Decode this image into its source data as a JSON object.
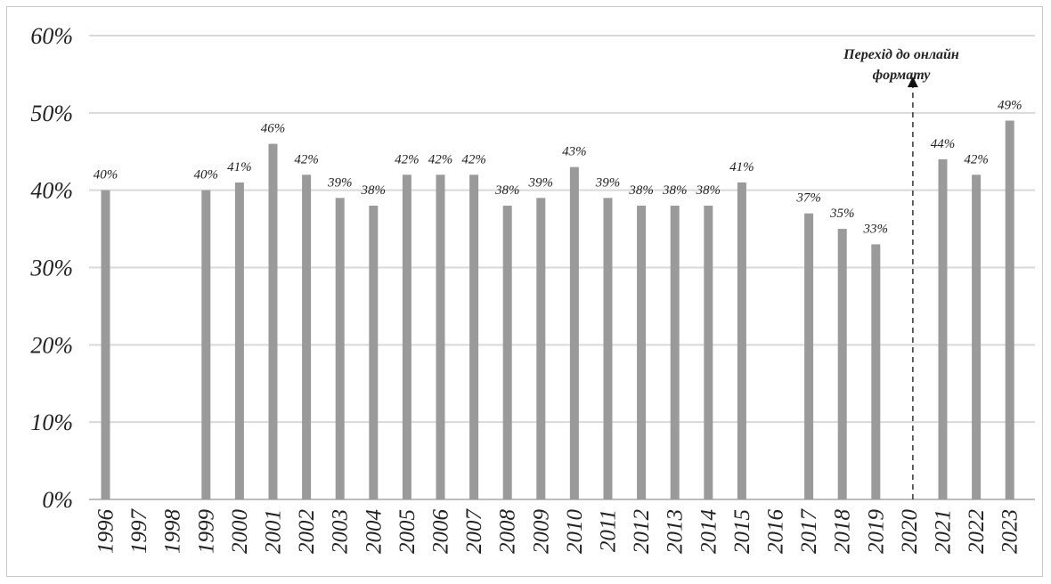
{
  "chart_data": {
    "type": "bar",
    "categories": [
      "1996",
      "1997",
      "1998",
      "1999",
      "2000",
      "2001",
      "2002",
      "2003",
      "2004",
      "2005",
      "2006",
      "2007",
      "2008",
      "2009",
      "2010",
      "2011",
      "2012",
      "2013",
      "2014",
      "2015",
      "2016",
      "2017",
      "2018",
      "2019",
      "2020",
      "2021",
      "2022",
      "2023"
    ],
    "values": [
      40,
      null,
      null,
      40,
      41,
      46,
      42,
      39,
      38,
      42,
      42,
      42,
      38,
      39,
      43,
      39,
      38,
      38,
      38,
      41,
      null,
      37,
      35,
      33,
      null,
      44,
      42,
      49
    ],
    "data_labels": [
      "40%",
      "",
      "",
      "40%",
      "41%",
      "46%",
      "42%",
      "39%",
      "38%",
      "42%",
      "42%",
      "42%",
      "38%",
      "39%",
      "43%",
      "39%",
      "38%",
      "38%",
      "38%",
      "41%",
      "",
      "37%",
      "35%",
      "33%",
      "",
      "44%",
      "42%",
      "49%"
    ],
    "y_ticks": [
      "0%",
      "10%",
      "20%",
      "30%",
      "40%",
      "50%",
      "60%"
    ],
    "ylim": [
      0,
      60
    ],
    "grid": true,
    "bar_color": "#9a9a9a",
    "grid_color": "#d9d9d9",
    "annotation": {
      "lines": [
        "Перехід до онлайн",
        "формату"
      ],
      "at_category": "2020",
      "style": "dashed-arrow"
    },
    "title": "",
    "xlabel": "",
    "ylabel": ""
  }
}
